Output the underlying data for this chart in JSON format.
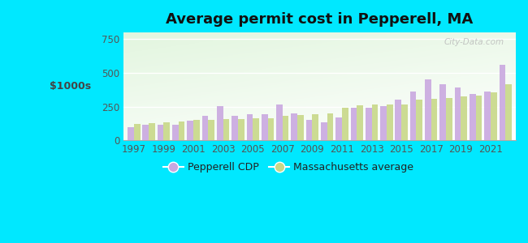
{
  "years": [
    1997,
    1998,
    1999,
    2000,
    2001,
    2002,
    2003,
    2004,
    2005,
    2006,
    2007,
    2008,
    2009,
    2010,
    2011,
    2012,
    2013,
    2014,
    2015,
    2016,
    2017,
    2018,
    2019,
    2020,
    2021,
    2022
  ],
  "pepperell": [
    100,
    115,
    115,
    115,
    145,
    180,
    255,
    185,
    195,
    195,
    265,
    200,
    155,
    135,
    170,
    240,
    245,
    255,
    305,
    365,
    450,
    415,
    390,
    345,
    365,
    560
  ],
  "ma_avg": [
    125,
    130,
    135,
    140,
    150,
    155,
    160,
    160,
    165,
    165,
    185,
    190,
    195,
    200,
    240,
    260,
    265,
    265,
    265,
    305,
    310,
    315,
    325,
    335,
    355,
    415
  ],
  "pepperell_color": "#c9a8e0",
  "ma_avg_color": "#c8d888",
  "title": "Average permit cost in Pepperell, MA",
  "ylabel": "$1000s",
  "ylim": [
    0,
    800
  ],
  "yticks": [
    0,
    250,
    500,
    750
  ],
  "outer_bg": "#00e8ff",
  "watermark": "City-Data.com",
  "legend_pepperell": "Pepperell CDP",
  "legend_ma": "Massachusetts average",
  "title_fontsize": 13,
  "axis_fontsize": 8.5,
  "legend_fontsize": 9
}
